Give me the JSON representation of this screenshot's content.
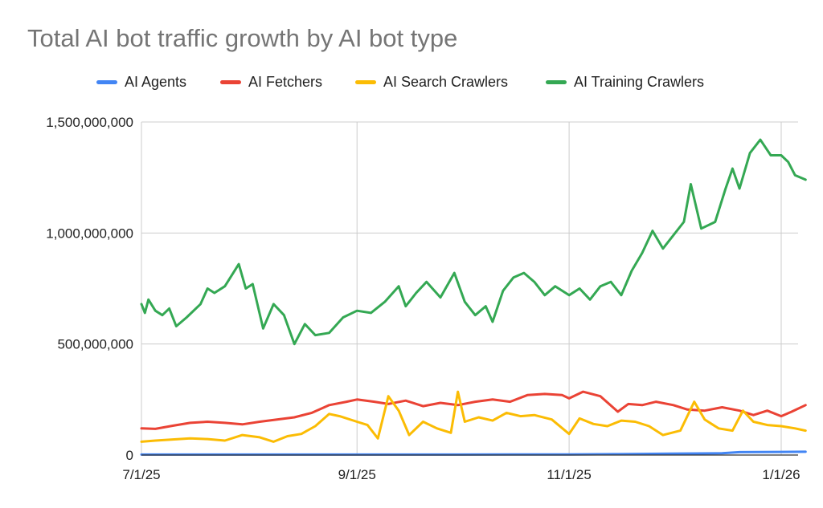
{
  "chart_data": {
    "type": "line",
    "title": "Total AI bot traffic growth by AI bot type",
    "xlabel": "",
    "ylabel": "",
    "x_range": [
      "2025-07-01",
      "2026-01-08"
    ],
    "ylim": [
      0,
      1500000000
    ],
    "y_ticks": [
      0,
      500000000,
      1000000000,
      1500000000
    ],
    "y_tick_labels": [
      "0",
      "500,000,000",
      "1,000,000,000",
      "1,500,000,000"
    ],
    "x_ticks": [
      "2025-07-01",
      "2025-09-01",
      "2025-11-01",
      "2026-01-01"
    ],
    "x_tick_labels": [
      "7/1/25",
      "9/1/25",
      "11/1/25",
      "1/1/26"
    ],
    "grid": true,
    "legend_position": "top",
    "series": [
      {
        "name": "AI Agents",
        "color": "#4285F4",
        "points": [
          [
            "2025-07-01",
            2000000
          ],
          [
            "2025-08-01",
            2000000
          ],
          [
            "2025-09-01",
            2000000
          ],
          [
            "2025-10-01",
            2000000
          ],
          [
            "2025-11-01",
            3000000
          ],
          [
            "2025-11-15",
            4000000
          ],
          [
            "2025-12-01",
            6000000
          ],
          [
            "2025-12-15",
            8000000
          ],
          [
            "2025-12-20",
            13000000
          ],
          [
            "2026-01-01",
            14000000
          ],
          [
            "2026-01-08",
            15000000
          ]
        ]
      },
      {
        "name": "AI Fetchers",
        "color": "#EA4335",
        "points": [
          [
            "2025-07-01",
            120000000
          ],
          [
            "2025-07-05",
            118000000
          ],
          [
            "2025-07-10",
            132000000
          ],
          [
            "2025-07-15",
            145000000
          ],
          [
            "2025-07-20",
            150000000
          ],
          [
            "2025-07-25",
            145000000
          ],
          [
            "2025-07-30",
            138000000
          ],
          [
            "2025-08-04",
            150000000
          ],
          [
            "2025-08-09",
            160000000
          ],
          [
            "2025-08-14",
            170000000
          ],
          [
            "2025-08-19",
            190000000
          ],
          [
            "2025-08-24",
            225000000
          ],
          [
            "2025-08-29",
            240000000
          ],
          [
            "2025-09-01",
            250000000
          ],
          [
            "2025-09-06",
            240000000
          ],
          [
            "2025-09-10",
            230000000
          ],
          [
            "2025-09-15",
            245000000
          ],
          [
            "2025-09-20",
            220000000
          ],
          [
            "2025-09-25",
            235000000
          ],
          [
            "2025-09-30",
            225000000
          ],
          [
            "2025-10-05",
            240000000
          ],
          [
            "2025-10-10",
            250000000
          ],
          [
            "2025-10-15",
            240000000
          ],
          [
            "2025-10-20",
            270000000
          ],
          [
            "2025-10-25",
            275000000
          ],
          [
            "2025-10-30",
            270000000
          ],
          [
            "2025-11-01",
            255000000
          ],
          [
            "2025-11-05",
            285000000
          ],
          [
            "2025-11-10",
            265000000
          ],
          [
            "2025-11-15",
            195000000
          ],
          [
            "2025-11-18",
            230000000
          ],
          [
            "2025-11-22",
            225000000
          ],
          [
            "2025-11-26",
            240000000
          ],
          [
            "2025-12-01",
            225000000
          ],
          [
            "2025-12-05",
            205000000
          ],
          [
            "2025-12-10",
            200000000
          ],
          [
            "2025-12-15",
            215000000
          ],
          [
            "2025-12-20",
            200000000
          ],
          [
            "2025-12-24",
            180000000
          ],
          [
            "2025-12-28",
            200000000
          ],
          [
            "2026-01-01",
            175000000
          ],
          [
            "2026-01-04",
            195000000
          ],
          [
            "2026-01-08",
            225000000
          ]
        ]
      },
      {
        "name": "AI Search Crawlers",
        "color": "#FBBC04",
        "points": [
          [
            "2025-07-01",
            60000000
          ],
          [
            "2025-07-05",
            65000000
          ],
          [
            "2025-07-10",
            70000000
          ],
          [
            "2025-07-15",
            75000000
          ],
          [
            "2025-07-20",
            72000000
          ],
          [
            "2025-07-25",
            65000000
          ],
          [
            "2025-07-30",
            90000000
          ],
          [
            "2025-08-04",
            80000000
          ],
          [
            "2025-08-08",
            60000000
          ],
          [
            "2025-08-12",
            85000000
          ],
          [
            "2025-08-16",
            95000000
          ],
          [
            "2025-08-20",
            130000000
          ],
          [
            "2025-08-24",
            185000000
          ],
          [
            "2025-08-27",
            175000000
          ],
          [
            "2025-09-01",
            150000000
          ],
          [
            "2025-09-04",
            135000000
          ],
          [
            "2025-09-07",
            75000000
          ],
          [
            "2025-09-10",
            265000000
          ],
          [
            "2025-09-13",
            200000000
          ],
          [
            "2025-09-16",
            90000000
          ],
          [
            "2025-09-20",
            150000000
          ],
          [
            "2025-09-24",
            120000000
          ],
          [
            "2025-09-28",
            100000000
          ],
          [
            "2025-09-30",
            285000000
          ],
          [
            "2025-10-02",
            150000000
          ],
          [
            "2025-10-06",
            170000000
          ],
          [
            "2025-10-10",
            155000000
          ],
          [
            "2025-10-14",
            190000000
          ],
          [
            "2025-10-18",
            175000000
          ],
          [
            "2025-10-22",
            180000000
          ],
          [
            "2025-10-27",
            160000000
          ],
          [
            "2025-11-01",
            95000000
          ],
          [
            "2025-11-04",
            165000000
          ],
          [
            "2025-11-08",
            140000000
          ],
          [
            "2025-11-12",
            130000000
          ],
          [
            "2025-11-16",
            155000000
          ],
          [
            "2025-11-20",
            150000000
          ],
          [
            "2025-11-24",
            130000000
          ],
          [
            "2025-11-28",
            90000000
          ],
          [
            "2025-12-03",
            110000000
          ],
          [
            "2025-12-07",
            240000000
          ],
          [
            "2025-12-10",
            160000000
          ],
          [
            "2025-12-14",
            120000000
          ],
          [
            "2025-12-18",
            110000000
          ],
          [
            "2025-12-21",
            200000000
          ],
          [
            "2025-12-24",
            150000000
          ],
          [
            "2025-12-28",
            135000000
          ],
          [
            "2026-01-01",
            130000000
          ],
          [
            "2026-01-05",
            120000000
          ],
          [
            "2026-01-08",
            110000000
          ]
        ]
      },
      {
        "name": "AI Training Crawlers",
        "color": "#34A853",
        "points": [
          [
            "2025-07-01",
            680000000
          ],
          [
            "2025-07-02",
            640000000
          ],
          [
            "2025-07-03",
            700000000
          ],
          [
            "2025-07-05",
            650000000
          ],
          [
            "2025-07-07",
            630000000
          ],
          [
            "2025-07-09",
            660000000
          ],
          [
            "2025-07-11",
            580000000
          ],
          [
            "2025-07-14",
            620000000
          ],
          [
            "2025-07-18",
            680000000
          ],
          [
            "2025-07-20",
            750000000
          ],
          [
            "2025-07-22",
            730000000
          ],
          [
            "2025-07-25",
            760000000
          ],
          [
            "2025-07-29",
            860000000
          ],
          [
            "2025-07-31",
            750000000
          ],
          [
            "2025-08-02",
            770000000
          ],
          [
            "2025-08-05",
            570000000
          ],
          [
            "2025-08-08",
            680000000
          ],
          [
            "2025-08-11",
            630000000
          ],
          [
            "2025-08-14",
            500000000
          ],
          [
            "2025-08-17",
            590000000
          ],
          [
            "2025-08-20",
            540000000
          ],
          [
            "2025-08-24",
            550000000
          ],
          [
            "2025-08-28",
            620000000
          ],
          [
            "2025-09-01",
            650000000
          ],
          [
            "2025-09-05",
            640000000
          ],
          [
            "2025-09-09",
            690000000
          ],
          [
            "2025-09-13",
            760000000
          ],
          [
            "2025-09-15",
            670000000
          ],
          [
            "2025-09-18",
            730000000
          ],
          [
            "2025-09-21",
            780000000
          ],
          [
            "2025-09-25",
            710000000
          ],
          [
            "2025-09-29",
            820000000
          ],
          [
            "2025-10-02",
            690000000
          ],
          [
            "2025-10-05",
            630000000
          ],
          [
            "2025-10-08",
            670000000
          ],
          [
            "2025-10-10",
            600000000
          ],
          [
            "2025-10-13",
            740000000
          ],
          [
            "2025-10-16",
            800000000
          ],
          [
            "2025-10-19",
            820000000
          ],
          [
            "2025-10-22",
            780000000
          ],
          [
            "2025-10-25",
            720000000
          ],
          [
            "2025-10-28",
            760000000
          ],
          [
            "2025-11-01",
            720000000
          ],
          [
            "2025-11-04",
            750000000
          ],
          [
            "2025-11-07",
            700000000
          ],
          [
            "2025-11-10",
            760000000
          ],
          [
            "2025-11-13",
            780000000
          ],
          [
            "2025-11-16",
            720000000
          ],
          [
            "2025-11-19",
            830000000
          ],
          [
            "2025-11-22",
            910000000
          ],
          [
            "2025-11-25",
            1010000000
          ],
          [
            "2025-11-28",
            930000000
          ],
          [
            "2025-12-01",
            990000000
          ],
          [
            "2025-12-04",
            1050000000
          ],
          [
            "2025-12-06",
            1220000000
          ],
          [
            "2025-12-09",
            1020000000
          ],
          [
            "2025-12-13",
            1050000000
          ],
          [
            "2025-12-16",
            1200000000
          ],
          [
            "2025-12-18",
            1290000000
          ],
          [
            "2025-12-20",
            1200000000
          ],
          [
            "2025-12-23",
            1360000000
          ],
          [
            "2025-12-26",
            1420000000
          ],
          [
            "2025-12-29",
            1350000000
          ],
          [
            "2026-01-01",
            1350000000
          ],
          [
            "2026-01-03",
            1320000000
          ],
          [
            "2026-01-05",
            1260000000
          ],
          [
            "2026-01-08",
            1240000000
          ]
        ]
      }
    ]
  }
}
